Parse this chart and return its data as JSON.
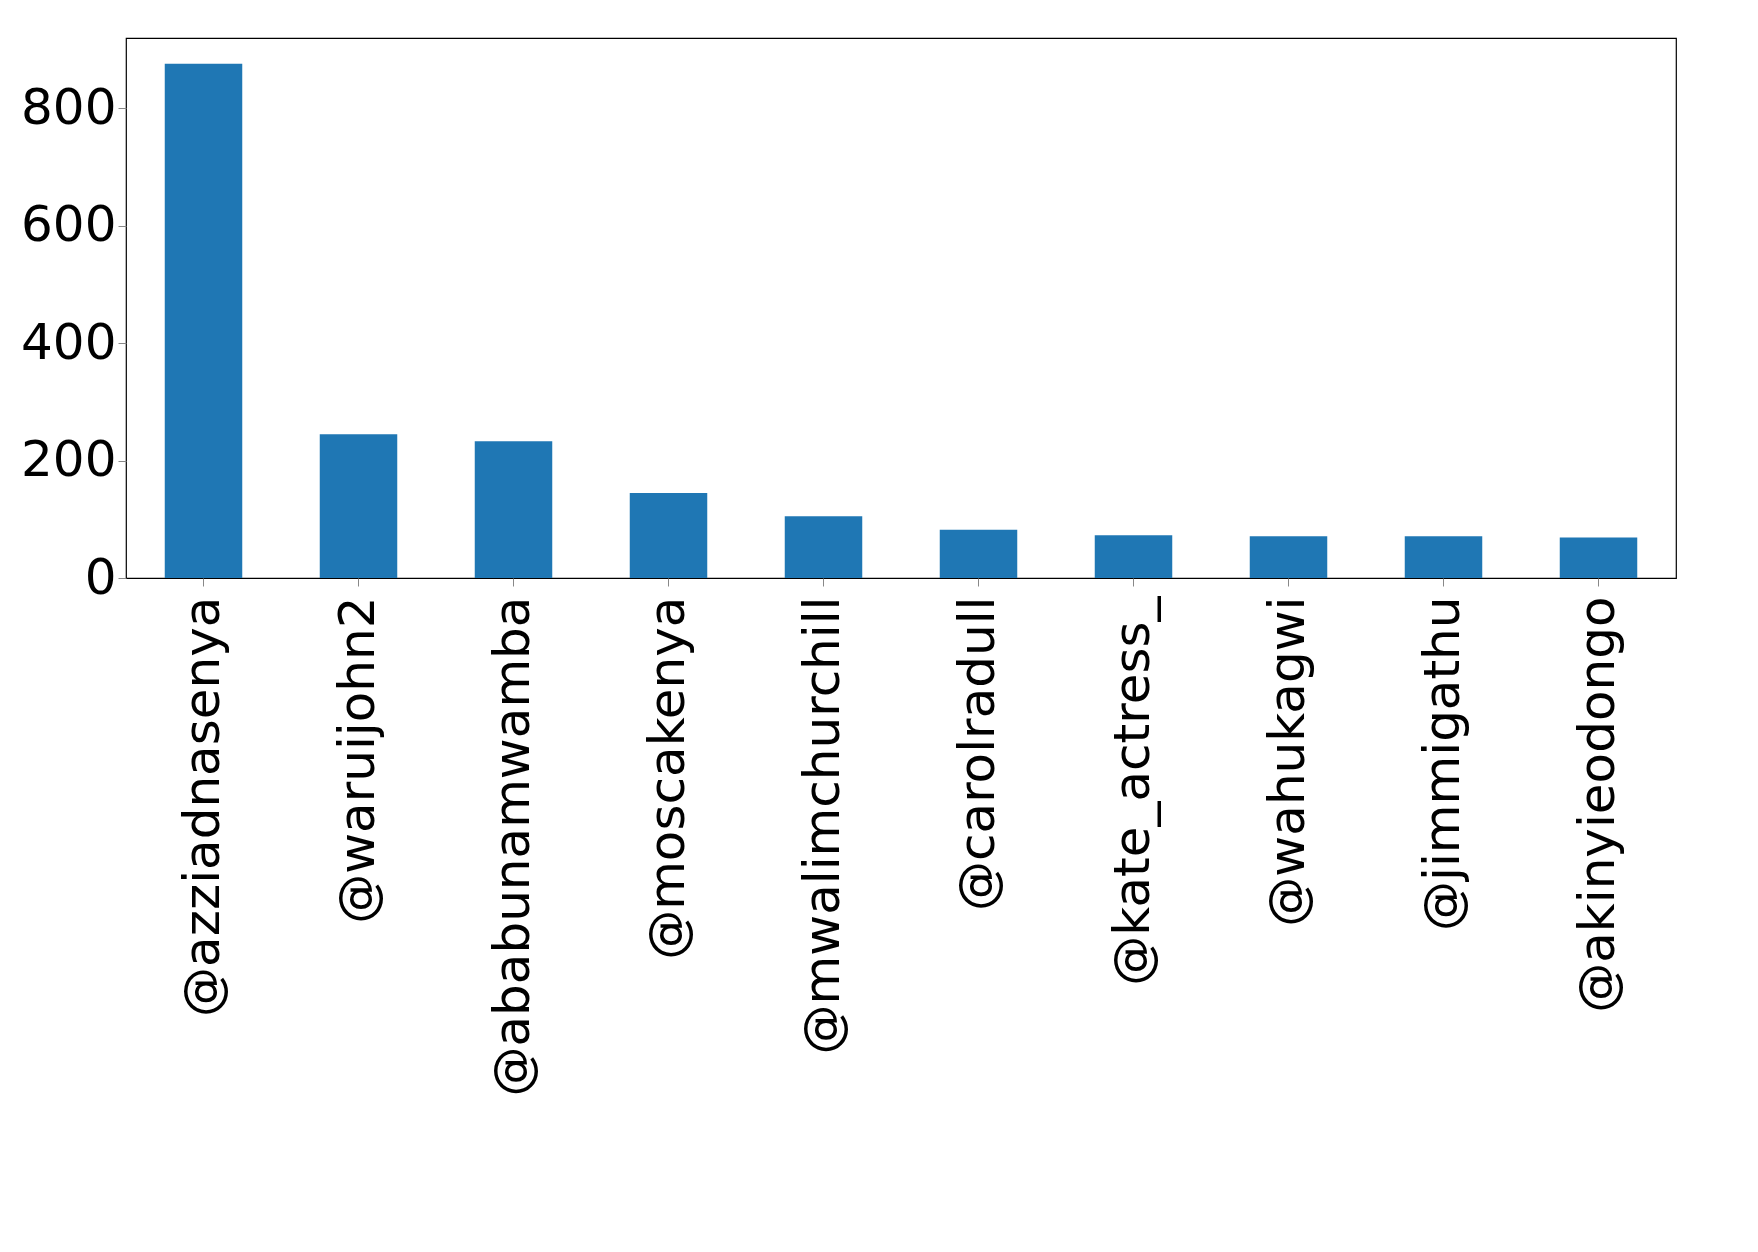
{
  "chart_data": {
    "type": "bar",
    "categories": [
      "@azziadnasenya",
      "@waruijohn2",
      "@ababunamwamba",
      "@moscakenya",
      "@mwalimchurchill",
      "@carolradull",
      "@kate_actress_",
      "@wahukagwi",
      "@jimmigathu",
      "@akinyieodongo"
    ],
    "values": [
      876,
      245,
      233,
      145,
      105,
      82,
      73,
      71,
      71,
      69
    ],
    "color": "#1f77b4",
    "ylim": [
      0,
      920
    ],
    "yticks": [
      0,
      200,
      400,
      600,
      800
    ],
    "grid": false
  }
}
